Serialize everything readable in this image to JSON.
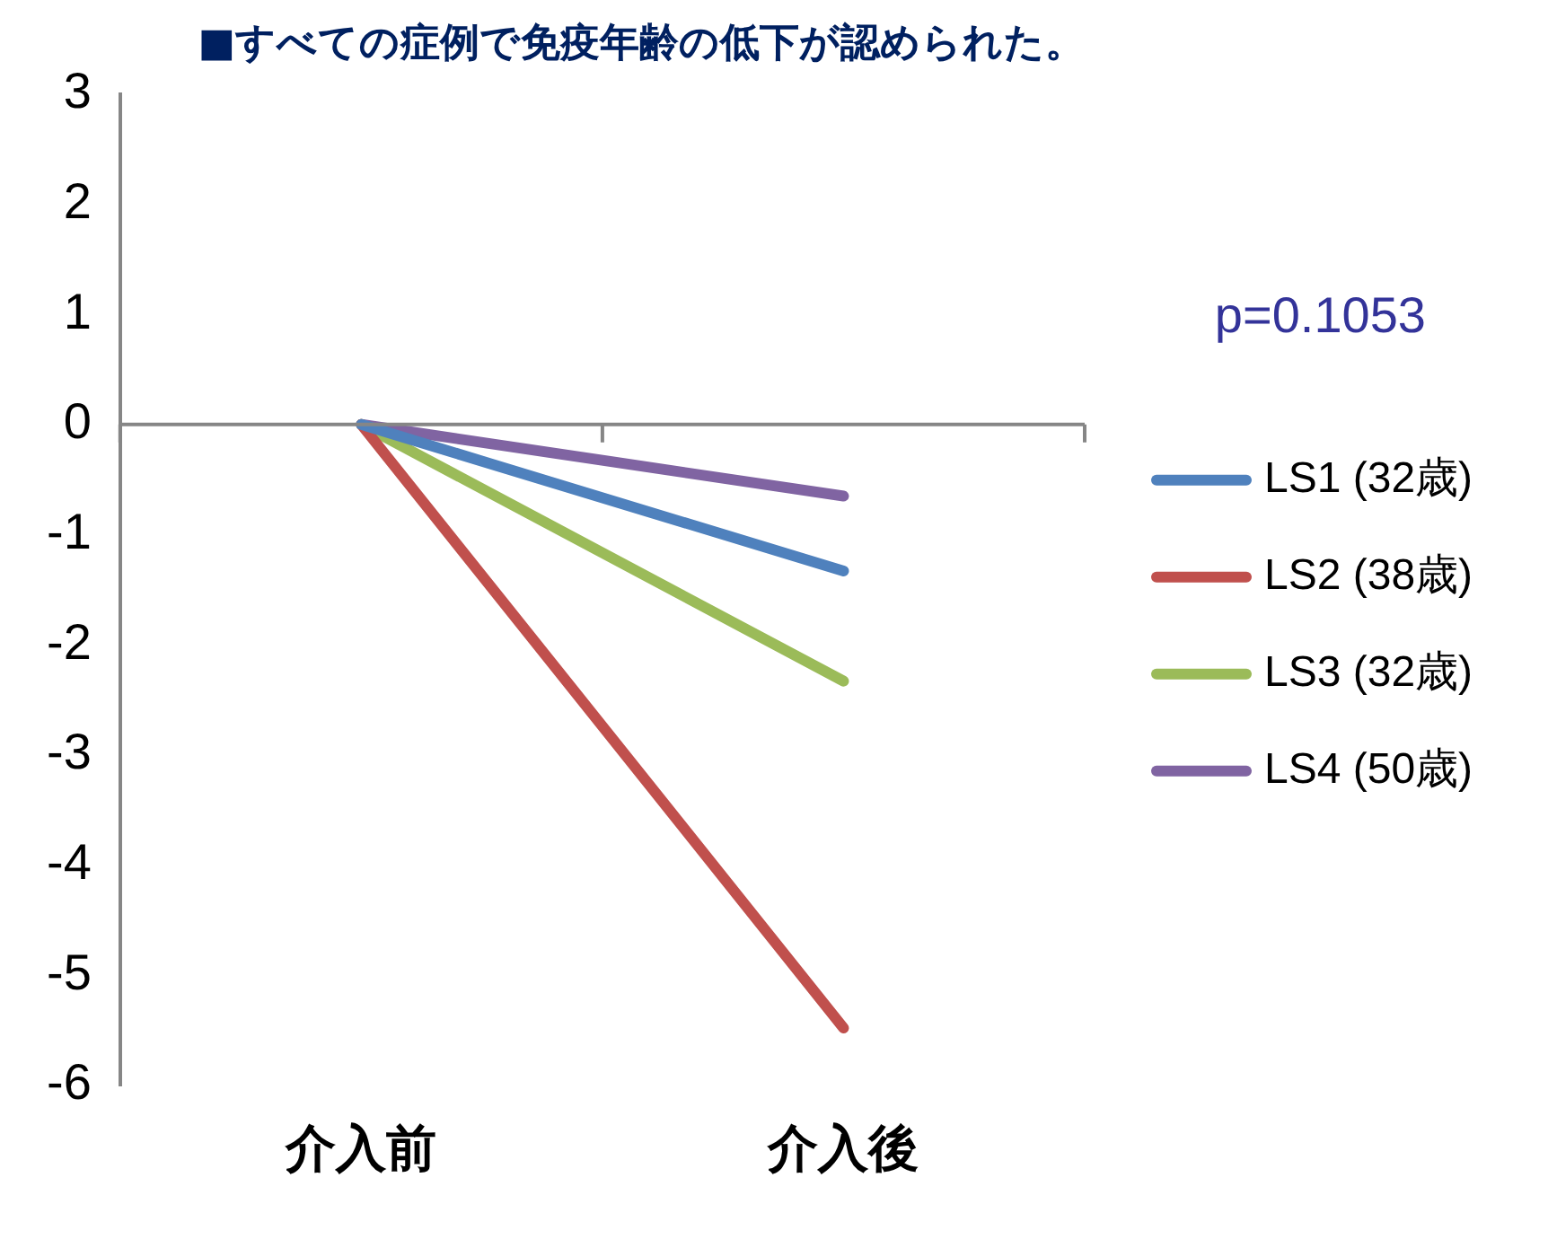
{
  "chart_data": {
    "type": "line",
    "title": "■すべての症例で免疫年齢の低下が認められた。",
    "categories": [
      "介入前",
      "介入後"
    ],
    "series": [
      {
        "name": "LS1 (32歳)",
        "color": "#4f81bd",
        "values": [
          0,
          -1.33
        ]
      },
      {
        "name": "LS2 (38歳)",
        "color": "#c0504d",
        "values": [
          0,
          -5.48
        ]
      },
      {
        "name": "LS3 (32歳)",
        "color": "#9bbb59",
        "values": [
          0,
          -2.33
        ]
      },
      {
        "name": "LS4 (50歳)",
        "color": "#8064a2",
        "values": [
          0,
          -0.65
        ]
      }
    ],
    "ylim": [
      -6,
      3
    ],
    "yticks": [
      -6,
      -5,
      -4,
      -3,
      -2,
      -1,
      0,
      1,
      2,
      3
    ],
    "grid": false,
    "legend": "right",
    "marker": "none",
    "line_style": "solid",
    "ref_lines": [
      {
        "axis": "y",
        "value": 0,
        "color": "#868686"
      }
    ],
    "annotations": [
      "p=0.1053"
    ]
  }
}
